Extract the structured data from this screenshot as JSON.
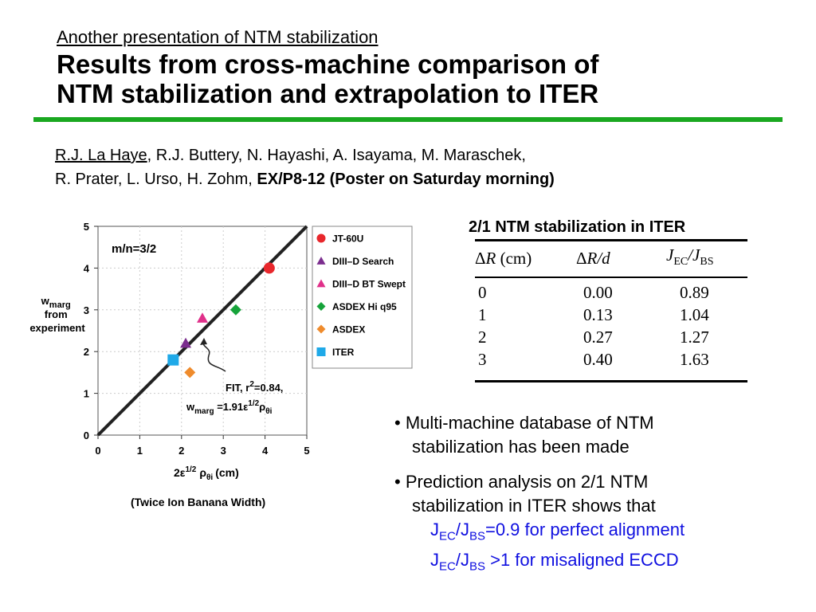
{
  "slide": {
    "subtitle": "Another presentation of NTM stabilization",
    "title_line1": "Results from cross-machine comparison of",
    "title_line2": "NTM stabilization and extrapolation to ITER",
    "authors": {
      "first_author": "R.J. La Haye",
      "line1_rest": ", R.J. Buttery, N. Hayashi, A. Isayama, M. Maraschek,",
      "line2_prefix": "R. Prater, L. Urso, H. Zohm,",
      "line2_bold": "EX/P8-12 (Poster on Saturday morning)"
    },
    "colors": {
      "rule": "#1aa820",
      "highlight_text": "#1010e0"
    }
  },
  "chart_data": {
    "type": "scatter",
    "annotation_mode": "m/n=3/2",
    "xlabel": {
      "main": "2ε",
      "sup": "1/2",
      "rho": "ρ",
      "sub": "θi",
      "unit": "(cm)"
    },
    "xlabel_note": "(Twice Ion Banana Width)",
    "ylabel": [
      "w",
      "marg",
      "from",
      "experiment"
    ],
    "xlim": [
      0,
      5
    ],
    "ylim": [
      0,
      5
    ],
    "xticks": [
      "0",
      "1",
      "2",
      "3",
      "4",
      "5"
    ],
    "yticks": [
      "0",
      "1",
      "2",
      "3",
      "4",
      "5"
    ],
    "series": [
      {
        "name": "JT-60U",
        "marker": "circle",
        "color": "#e8272c",
        "x": 4.1,
        "y": 4.0
      },
      {
        "name": "DIII–D Search",
        "marker": "triangle",
        "color": "#7b2d8e",
        "x": 2.1,
        "y": 2.2
      },
      {
        "name": "DIII–D BT Swept",
        "marker": "triangle",
        "color": "#e0308a",
        "x": 2.5,
        "y": 2.8
      },
      {
        "name": "ASDEX Hi q95",
        "marker": "diamond",
        "color": "#16a33a",
        "x": 3.3,
        "y": 3.0
      },
      {
        "name": "ASDEX",
        "marker": "diamond",
        "color": "#ef8b2c",
        "x": 2.2,
        "y": 1.5
      },
      {
        "name": "ITER",
        "marker": "square",
        "color": "#1fa9e8",
        "x": 1.8,
        "y": 1.8
      }
    ],
    "fit": {
      "slope": 1.0,
      "label_line1": "FIT, r",
      "label_line1_sup": "2",
      "label_line1_end": "=0.84,",
      "label_line2_w": "w",
      "label_line2_sub": "marg",
      "label_line2_eq": " =1.91ε",
      "label_line2_sup": "1/2",
      "label_line2_rho": "ρ",
      "label_line2_rhosub": "θi"
    },
    "legend_position": "right"
  },
  "table": {
    "title": "2/1 NTM stabilization in ITER",
    "headers": [
      {
        "sym": "Δ",
        "var": "R",
        "unit": " (cm)"
      },
      {
        "sym": "Δ",
        "var": "R/d",
        "unit": ""
      },
      {
        "a": "J",
        "asub": "EC",
        "b": "/J",
        "bsub": "BS"
      }
    ],
    "rows": [
      [
        "0",
        "0.00",
        "0.89"
      ],
      [
        "1",
        "0.13",
        "1.04"
      ],
      [
        "2",
        "0.27",
        "1.27"
      ],
      [
        "3",
        "0.40",
        "1.63"
      ]
    ]
  },
  "bullets": {
    "b1_line1": "• Multi-machine database of NTM",
    "b1_line2": "stabilization has been made",
    "b2_line1": "•  Prediction analysis on 2/1 NTM",
    "b2_line2": "stabilization in ITER shows that",
    "b2_line3": {
      "j": "J",
      "ec": "EC",
      "slash": "/J",
      "bs": "BS",
      "rest": "=0.9 for perfect alignment"
    },
    "b2_line4": {
      "j": "J",
      "ec": "EC",
      "slash": "/J",
      "bs": "BS",
      "rest": " >1 for misaligned ECCD"
    }
  }
}
